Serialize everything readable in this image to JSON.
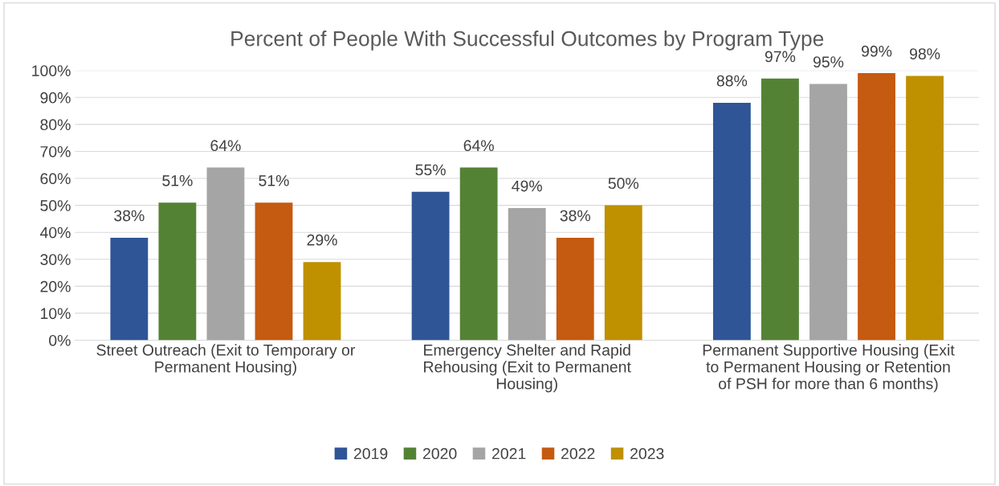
{
  "chart_data": {
    "type": "bar",
    "title": "Percent of People With Successful Outcomes by Program Type",
    "categories": [
      "Street Outreach (Exit to Temporary or\nPermanent Housing)",
      "Emergency Shelter and Rapid\nRehousing (Exit to Permanent\nHousing)",
      "Permanent Supportive Housing (Exit\nto Permanent Housing or Retention\nof PSH for more than 6 months)"
    ],
    "series": [
      {
        "name": "2019",
        "color": "#2f5597",
        "values": [
          38,
          55,
          88
        ],
        "value_labels": [
          "38%",
          "55%",
          "88%"
        ]
      },
      {
        "name": "2020",
        "color": "#548235",
        "values": [
          51,
          64,
          97
        ],
        "value_labels": [
          "51%",
          "64%",
          "97%"
        ]
      },
      {
        "name": "2021",
        "color": "#a5a5a5",
        "values": [
          64,
          49,
          95
        ],
        "value_labels": [
          "64%",
          "49%",
          "95%"
        ]
      },
      {
        "name": "2022",
        "color": "#c55a11",
        "values": [
          51,
          38,
          99
        ],
        "value_labels": [
          "51%",
          "38%",
          "99%"
        ]
      },
      {
        "name": "2023",
        "color": "#bf9000",
        "values": [
          29,
          50,
          98
        ],
        "value_labels": [
          "29%",
          "50%",
          "98%"
        ]
      }
    ],
    "ylim": [
      0,
      100
    ],
    "yticks": [
      {
        "value": 0,
        "label": "0%"
      },
      {
        "value": 10,
        "label": "10%"
      },
      {
        "value": 20,
        "label": "20%"
      },
      {
        "value": 30,
        "label": "30%"
      },
      {
        "value": 40,
        "label": "40%"
      },
      {
        "value": 50,
        "label": "50%"
      },
      {
        "value": 60,
        "label": "60%"
      },
      {
        "value": 70,
        "label": "70%"
      },
      {
        "value": 80,
        "label": "80%"
      },
      {
        "value": 90,
        "label": "90%"
      },
      {
        "value": 100,
        "label": "100%"
      }
    ],
    "grid": "y",
    "legend": "bottom"
  }
}
